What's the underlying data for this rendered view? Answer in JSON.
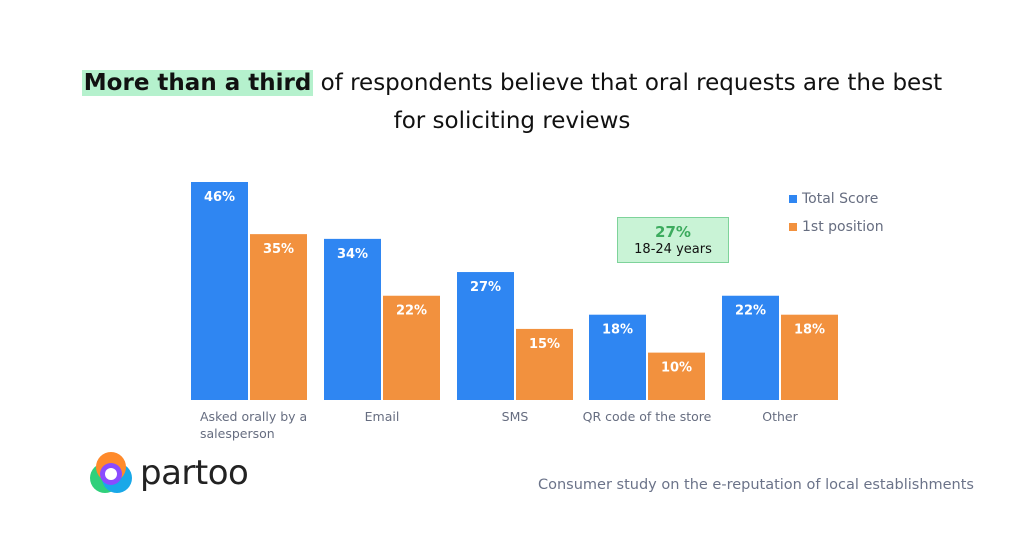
{
  "header": {
    "title_highlight": "More than a third",
    "title_rest": " of respondents believe that oral requests are the best",
    "title_line2": "for soliciting reviews"
  },
  "callout": {
    "value": "27%",
    "label": "18-24 years"
  },
  "brand": {
    "name": "partoo"
  },
  "footer": {
    "source": "Consumer study on the e-reputation of local establishments"
  },
  "chart_data": {
    "type": "bar",
    "categories": [
      "Asked orally by a salesperson",
      "Email",
      "SMS",
      "QR code of the store",
      "Other"
    ],
    "series": [
      {
        "name": "Total Score",
        "color": "#2f86f2",
        "values": [
          46,
          34,
          27,
          18,
          22
        ],
        "labels": [
          "46%",
          "34%",
          "27%",
          "18%",
          "22%"
        ]
      },
      {
        "name": "1st position",
        "color": "#f2913e",
        "values": [
          35,
          22,
          15,
          10,
          18
        ],
        "labels": [
          "35%",
          "22%",
          "15%",
          "10%",
          "18%"
        ]
      }
    ],
    "ylim": [
      0,
      46
    ],
    "legend": "top-right",
    "grid": false,
    "xlabel": "",
    "ylabel": ""
  }
}
